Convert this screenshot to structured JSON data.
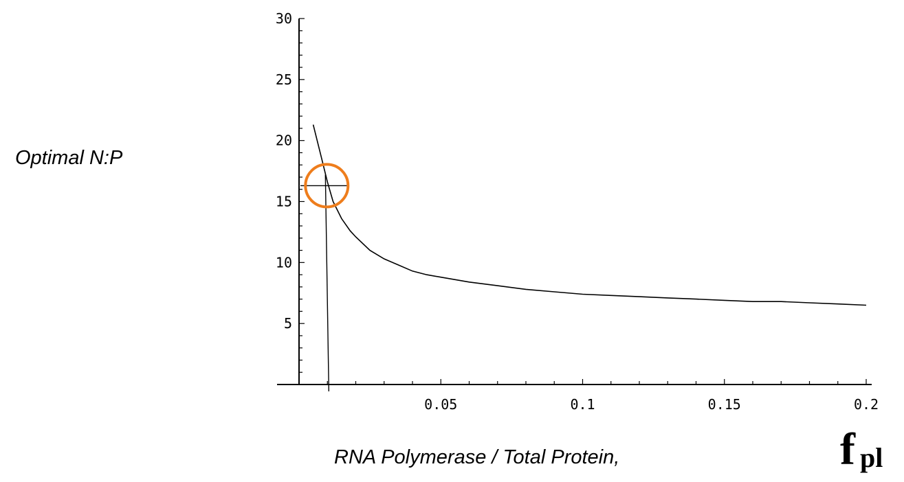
{
  "chart_data": {
    "type": "line",
    "xlabel": "RNA Polymerase / Total Protein,",
    "xlabel_symbol": "f",
    "xlabel_symbol_subscript": "pl",
    "ylabel": "Optimal N:P",
    "xlim": [
      0,
      0.2
    ],
    "ylim": [
      0,
      30
    ],
    "x_ticks": [
      0.05,
      0.1,
      0.15,
      0.2
    ],
    "x_tick_labels": [
      "0.05",
      "0.1",
      "0.15",
      "0.2"
    ],
    "y_ticks": [
      5,
      10,
      15,
      20,
      25,
      30
    ],
    "y_tick_labels": [
      "5",
      "10",
      "15",
      "20",
      "25",
      "30"
    ],
    "grid": false,
    "series": [
      {
        "x": [
          0.005,
          0.008,
          0.01,
          0.012,
          0.015,
          0.018,
          0.02,
          0.025,
          0.03,
          0.035,
          0.04,
          0.045,
          0.05,
          0.06,
          0.07,
          0.08,
          0.09,
          0.1,
          0.11,
          0.12,
          0.13,
          0.14,
          0.15,
          0.16,
          0.17,
          0.18,
          0.19,
          0.2
        ],
        "y": [
          21.3,
          18.5,
          16.6,
          15.0,
          13.6,
          12.6,
          12.1,
          11.0,
          10.3,
          9.8,
          9.3,
          9.0,
          8.8,
          8.4,
          8.1,
          7.8,
          7.6,
          7.4,
          7.3,
          7.2,
          7.1,
          7.0,
          6.9,
          6.8,
          6.8,
          6.7,
          6.6,
          6.5
        ]
      }
    ],
    "annotation": {
      "type": "circled-point",
      "x": 0.0105,
      "y": 16.3,
      "circle_color": "#ee7d1c",
      "line_color": "#000000"
    }
  }
}
